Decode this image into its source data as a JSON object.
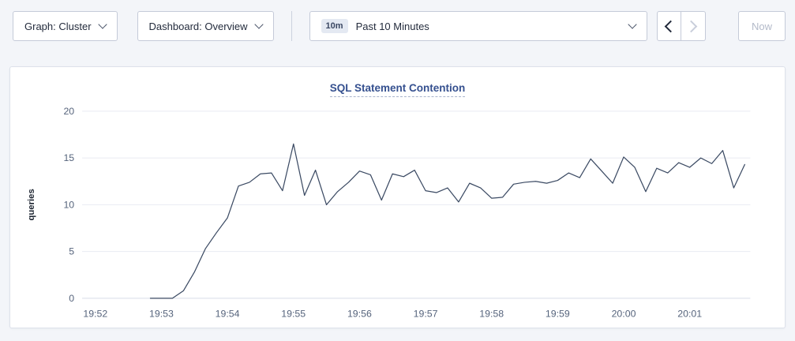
{
  "toolbar": {
    "graph_dropdown": {
      "label": "Graph: Cluster"
    },
    "dashboard_dropdown": {
      "label": "Dashboard: Overview"
    },
    "time_picker": {
      "badge": "10m",
      "label": "Past 10 Minutes"
    },
    "now_label": "Now"
  },
  "icons": {
    "graph_dropdown": "chevron-down-icon",
    "dashboard_dropdown": "chevron-down-icon",
    "time_picker": "chevron-down-icon",
    "back": "chevron-left-icon",
    "forward": "chevron-right-icon"
  },
  "colors": {
    "line": "#3b4a63",
    "title": "#35508f",
    "grid": "#e9ebf2",
    "grid_zero": "#d8dce6",
    "tick_text": "#56647c",
    "badge_bg": "#e4e9f2"
  },
  "chart_data": {
    "type": "line",
    "title": "SQL Statement Contention",
    "xlabel": "",
    "ylabel": "queries",
    "ylim": [
      0,
      20
    ],
    "yticks": [
      0,
      5,
      10,
      15,
      20
    ],
    "xticks": [
      "19:52",
      "19:53",
      "19:54",
      "19:55",
      "19:56",
      "19:57",
      "19:58",
      "19:59",
      "20:00",
      "20:01"
    ],
    "x_domain": [
      "19:51:48",
      "20:01:55"
    ],
    "grid": "horizontal-only",
    "legend": "none",
    "series": [
      {
        "name": "queries",
        "x": [
          "19:52:50",
          "19:53:00",
          "19:53:10",
          "19:53:20",
          "19:53:30",
          "19:53:40",
          "19:53:50",
          "19:54:00",
          "19:54:10",
          "19:54:20",
          "19:54:30",
          "19:54:40",
          "19:54:50",
          "19:55:00",
          "19:55:10",
          "19:55:20",
          "19:55:30",
          "19:55:40",
          "19:55:50",
          "19:56:00",
          "19:56:10",
          "19:56:20",
          "19:56:30",
          "19:56:40",
          "19:56:50",
          "19:57:00",
          "19:57:10",
          "19:57:20",
          "19:57:30",
          "19:57:40",
          "19:57:50",
          "19:58:00",
          "19:58:10",
          "19:58:20",
          "19:58:30",
          "19:58:40",
          "19:58:50",
          "19:59:00",
          "19:59:10",
          "19:59:20",
          "19:59:30",
          "19:59:40",
          "19:59:50",
          "20:00:00",
          "20:00:10",
          "20:00:20",
          "20:00:30",
          "20:00:40",
          "20:00:50",
          "20:01:00",
          "20:01:10",
          "20:01:20",
          "20:01:30",
          "20:01:40",
          "20:01:50"
        ],
        "values": [
          0,
          0,
          0,
          0.8,
          2.8,
          5.3,
          7,
          8.6,
          12,
          12.4,
          13.3,
          13.4,
          11.5,
          16.5,
          11,
          13.7,
          10,
          11.4,
          12.4,
          13.6,
          13.2,
          10.5,
          13.3,
          13,
          13.7,
          11.5,
          11.3,
          11.8,
          10.3,
          12.3,
          11.8,
          10.7,
          10.8,
          12.2,
          12.4,
          12.5,
          12.3,
          12.6,
          13.4,
          12.9,
          14.9,
          13.6,
          12.3,
          15.1,
          14,
          11.4,
          13.9,
          13.4,
          14.5,
          14,
          15,
          14.4,
          15.8,
          11.8,
          14.3
        ]
      }
    ]
  }
}
